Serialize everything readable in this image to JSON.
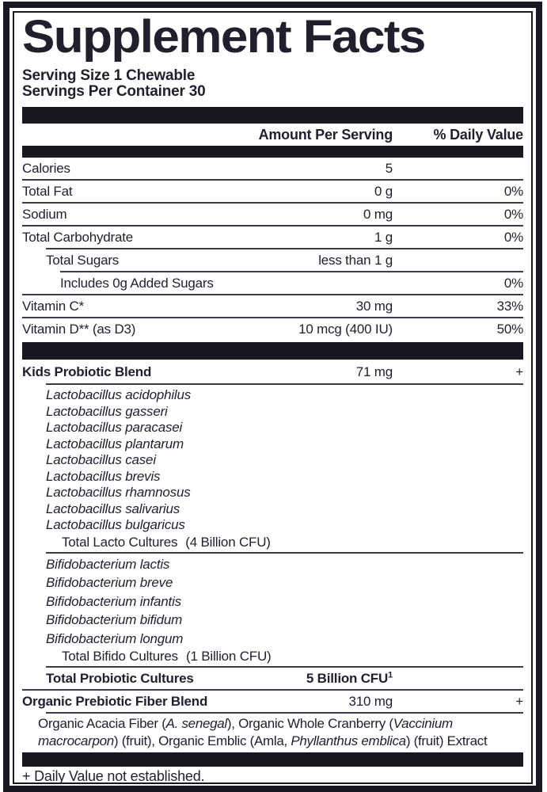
{
  "label": {
    "title": "Supplement Facts",
    "serving_size": "Serving Size 1 Chewable",
    "servings_per_container": "Servings Per Container 30",
    "column_headers": {
      "amount": "Amount Per Serving",
      "daily_value": "% Daily Value"
    },
    "nutrient_rows": [
      {
        "name": "Calories",
        "amount": "5",
        "dv": ""
      },
      {
        "name": "Total Fat",
        "amount": "0 g",
        "dv": "0%"
      },
      {
        "name": "Sodium",
        "amount": "0 mg",
        "dv": "0%"
      },
      {
        "name": "Total Carbohydrate",
        "amount": "1 g",
        "dv": "0%"
      },
      {
        "name": "Total Sugars",
        "amount": "less than 1 g",
        "dv": ""
      },
      {
        "name": "Includes 0g Added Sugars",
        "amount": "",
        "dv": "0%"
      },
      {
        "name": "Vitamin C*",
        "amount": "30 mg",
        "dv": "33%"
      },
      {
        "name": "Vitamin D** (as D3)",
        "amount": "10 mcg (400 IU)",
        "dv": "50%"
      }
    ],
    "probiotic_blend": {
      "name": "Kids Probiotic Blend",
      "amount": "71 mg",
      "dv": "+",
      "lacto_species": [
        "Lactobacillus acidophilus",
        "Lactobacillus gasseri",
        "Lactobacillus paracasei",
        "Lactobacillus plantarum",
        "Lactobacillus casei",
        "Lactobacillus brevis",
        "Lactobacillus rhamnosus",
        "Lactobacillus salivarius",
        "Lactobacillus bulgaricus"
      ],
      "lacto_total": {
        "label": "Total Lacto Cultures",
        "cfu": "(4 Billion CFU)"
      },
      "bifido_species": [
        "Bifidobacterium lactis",
        "Bifidobacterium breve",
        "Bifidobacterium infantis",
        "Bifidobacterium bifidum",
        "Bifidobacterium longum"
      ],
      "bifido_total": {
        "label": "Total Bifido Cultures",
        "cfu": "(1 Billion CFU)"
      },
      "total_cultures": {
        "name": "Total Probiotic Cultures",
        "amount": "5 Billion CFU",
        "sup": "1"
      }
    },
    "fiber_blend": {
      "name": "Organic Prebiotic Fiber Blend",
      "amount": "310 mg",
      "dv": "+",
      "description_segments": [
        {
          "text": "Organic Acacia Fiber ("
        },
        {
          "text": "A. senegal"
        },
        {
          "text": "), Organic Whole Cranberry ("
        },
        {
          "text": "Vaccinium macrocarpon"
        },
        {
          "text": ") (fruit), Organic Emblic (Amla, "
        },
        {
          "text": "Phyllanthus emblica"
        },
        {
          "text": ") (fruit) Extract"
        }
      ]
    },
    "footnote": "+ Daily Value not established.",
    "colors": {
      "ink": "#221e2e",
      "bar": "#1a1622",
      "rule": "#3e3a49",
      "background": "#ffffff"
    }
  }
}
